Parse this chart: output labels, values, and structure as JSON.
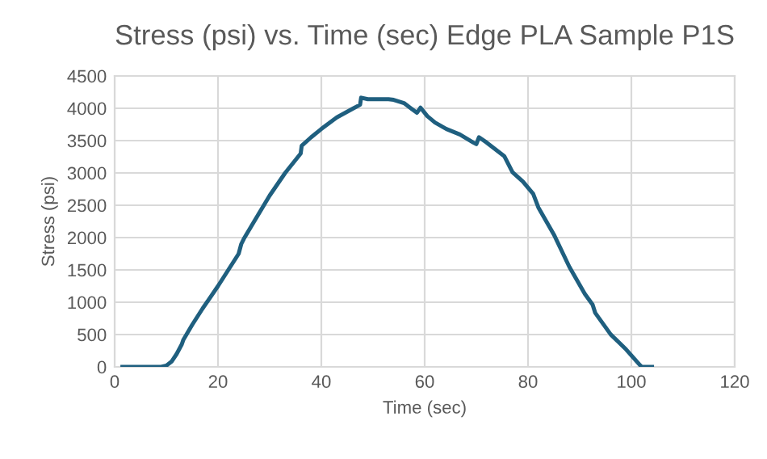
{
  "chart_data": {
    "type": "line",
    "title": "Stress (psi) vs. Time (sec) Edge PLA Sample P1S",
    "xlabel": "Time (sec)",
    "ylabel": "Stress (psi)",
    "xlim": [
      0,
      120
    ],
    "xticks": [
      0,
      20,
      40,
      60,
      80,
      100,
      120
    ],
    "ylim": [
      0,
      4500
    ],
    "yticks": [
      0,
      500,
      1000,
      1500,
      2000,
      2500,
      3000,
      3500,
      4000,
      4500
    ],
    "grid": true,
    "marker": "none",
    "line_style": "solid",
    "series": [
      {
        "color": "#1f5f7f",
        "x": [
          1.5,
          9,
          10,
          11,
          12,
          13,
          13.3,
          15,
          17,
          20,
          22,
          24,
          24.5,
          25,
          27,
          30,
          33,
          36,
          36.2,
          38,
          40,
          43,
          46,
          47.5,
          47.7,
          49,
          53,
          54,
          56,
          58.5,
          59.2,
          60.5,
          62,
          64.2,
          66.8,
          69.4,
          70,
          70.5,
          72,
          75.4,
          77,
          79,
          81,
          82,
          85,
          88,
          91,
          92.5,
          93,
          96,
          99,
          101.5,
          102,
          104
        ],
        "values": [
          0,
          0,
          20,
          80,
          200,
          350,
          420,
          650,
          900,
          1250,
          1500,
          1750,
          1900,
          1980,
          2250,
          2650,
          3000,
          3300,
          3420,
          3550,
          3680,
          3860,
          3990,
          4055,
          4164,
          4140,
          4140,
          4130,
          4080,
          3930,
          4010,
          3880,
          3780,
          3680,
          3595,
          3470,
          3445,
          3553,
          3470,
          3260,
          3010,
          2868,
          2676,
          2467,
          2048,
          1547,
          1129,
          962,
          836,
          502,
          268,
          42,
          0,
          0
        ]
      }
    ]
  }
}
